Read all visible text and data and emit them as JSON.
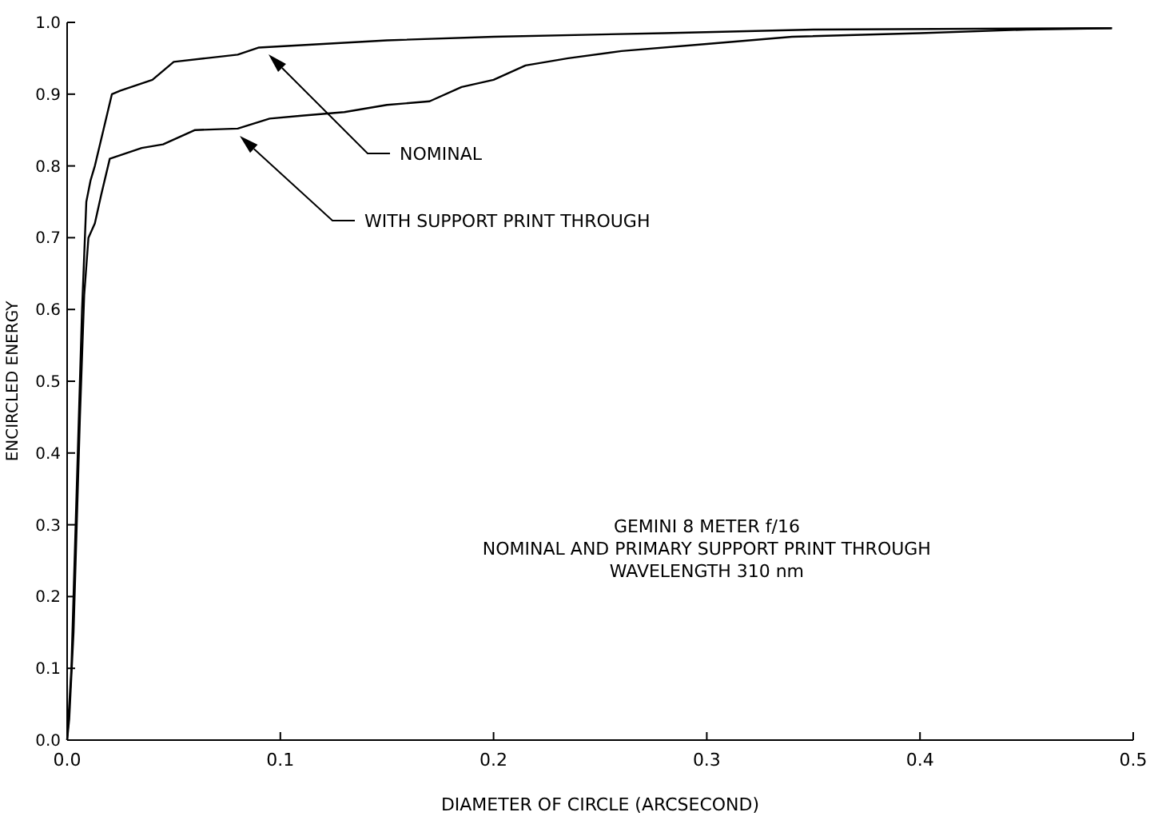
{
  "chart_data": {
    "type": "line",
    "xlabel": "DIAMETER OF CIRCLE (ARCSECOND)",
    "ylabel": "ENCIRCLED ENERGY",
    "xlim": [
      0,
      0.5
    ],
    "ylim": [
      0,
      1
    ],
    "xticks": [
      {
        "value": 0,
        "label": "0.0"
      },
      0.1,
      0.2,
      0.3,
      0.4,
      0.5
    ],
    "yticks": [
      {
        "value": 0,
        "label": "0.0"
      },
      0.1,
      0.2,
      0.3,
      0.4,
      0.5,
      0.6,
      0.7,
      0.8,
      0.9,
      {
        "value": 1,
        "label": "1.0"
      }
    ],
    "grid": false,
    "marker": "none",
    "line_style": "solid",
    "series": [
      {
        "color": "#000000",
        "x": [
          0,
          0.002,
          0.004,
          0.005,
          0.007,
          0.009,
          0.011,
          0.013,
          0.017,
          0.021,
          0.025,
          0.035,
          0.04,
          0.05,
          0.065,
          0.08,
          0.09,
          0.12,
          0.15,
          0.2,
          0.28,
          0.35,
          0.49
        ],
        "values": [
          0,
          0.1,
          0.3,
          0.4,
          0.6,
          0.75,
          0.78,
          0.8,
          0.85,
          0.9,
          0.905,
          0.915,
          0.92,
          0.945,
          0.95,
          0.955,
          0.965,
          0.97,
          0.975,
          0.98,
          0.985,
          0.99,
          0.992
        ]
      },
      {
        "color": "#000000",
        "x": [
          0,
          0.001,
          0.003,
          0.006,
          0.008,
          0.01,
          0.013,
          0.016,
          0.02,
          0.025,
          0.035,
          0.045,
          0.06,
          0.08,
          0.095,
          0.11,
          0.13,
          0.15,
          0.17,
          0.185,
          0.2,
          0.215,
          0.235,
          0.26,
          0.3,
          0.34,
          0.4,
          0.45,
          0.49
        ],
        "values": [
          0,
          0.03,
          0.15,
          0.45,
          0.62,
          0.7,
          0.72,
          0.76,
          0.81,
          0.815,
          0.825,
          0.83,
          0.85,
          0.852,
          0.866,
          0.87,
          0.875,
          0.885,
          0.89,
          0.91,
          0.92,
          0.94,
          0.95,
          0.96,
          0.97,
          0.98,
          0.985,
          0.99,
          0.992
        ]
      }
    ],
    "annotations": [
      "NOMINAL",
      "WITH SUPPORT PRINT THROUGH",
      "GEMINI 8 METER f/16",
      "NOMINAL AND PRIMARY SUPPORT PRINT THROUGH",
      "WAVELENGTH 310 nm"
    ]
  }
}
